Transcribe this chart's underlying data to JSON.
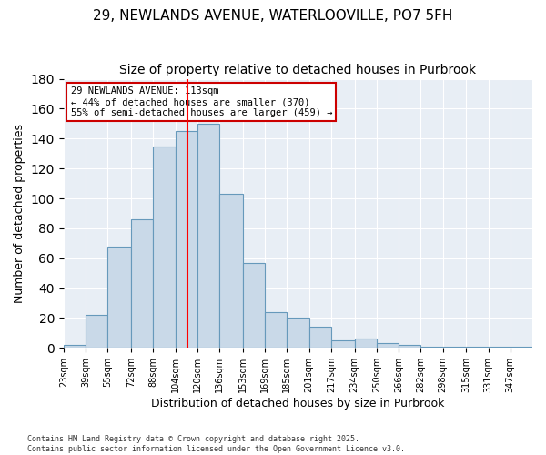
{
  "title": "29, NEWLANDS AVENUE, WATERLOOVILLE, PO7 5FH",
  "subtitle": "Size of property relative to detached houses in Purbrook",
  "xlabel": "Distribution of detached houses by size in Purbrook",
  "ylabel": "Number of detached properties",
  "bar_heights": [
    2,
    22,
    68,
    86,
    135,
    145,
    150,
    103,
    57,
    24,
    20,
    14,
    5,
    6,
    3,
    2,
    1,
    1,
    1,
    1,
    1
  ],
  "bar_color": "#c9d9e8",
  "bar_edge_color": "#6699bb",
  "red_line_x": 113,
  "bin_edges": [
    23,
    39,
    55,
    72,
    88,
    104,
    120,
    136,
    153,
    169,
    185,
    201,
    217,
    234,
    250,
    266,
    282,
    298,
    315,
    331,
    347,
    363
  ],
  "tick_labels": [
    "23sqm",
    "39sqm",
    "55sqm",
    "72sqm",
    "88sqm",
    "104sqm",
    "120sqm",
    "136sqm",
    "153sqm",
    "169sqm",
    "185sqm",
    "201sqm",
    "217sqm",
    "234sqm",
    "250sqm",
    "266sqm",
    "282sqm",
    "298sqm",
    "315sqm",
    "331sqm",
    "347sqm"
  ],
  "tick_positions": [
    23,
    39,
    55,
    72,
    88,
    104,
    120,
    136,
    153,
    169,
    185,
    201,
    217,
    234,
    250,
    266,
    282,
    298,
    315,
    331,
    347
  ],
  "annotation_text": "29 NEWLANDS AVENUE: 113sqm\n← 44% of detached houses are smaller (370)\n55% of semi-detached houses are larger (459) →",
  "annotation_box_color": "#ffffff",
  "annotation_box_edge": "#cc0000",
  "ylim": [
    0,
    180
  ],
  "yticks": [
    0,
    20,
    40,
    60,
    80,
    100,
    120,
    140,
    160,
    180
  ],
  "background_color": "#e8eef5",
  "footer": "Contains HM Land Registry data © Crown copyright and database right 2025.\nContains public sector information licensed under the Open Government Licence v3.0.",
  "title_fontsize": 11,
  "subtitle_fontsize": 10,
  "xlabel_fontsize": 9,
  "ylabel_fontsize": 9
}
